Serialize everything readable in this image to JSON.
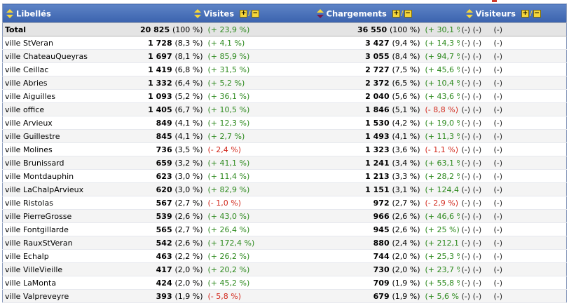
{
  "headers": {
    "libelles": "Libellés",
    "visites": "Visites",
    "chargements": "Chargements",
    "visiteurs": "Visiteurs",
    "plus": "+",
    "minus": "−",
    "slash": "/"
  },
  "total": {
    "label": "Total",
    "visites": "20 825",
    "visites_pct": "(100 %)",
    "visites_evol": "(+ 23,9 %)",
    "charg": "36 550",
    "charg_pct": "(100 %)",
    "charg_evol": "(+ 30,1 %)",
    "v1": "(-)",
    "v2": "(-)",
    "v3": "(-)"
  },
  "rows": [
    {
      "label": "ville StVeran",
      "visites": "1 728",
      "visites_pct": "(8,3 %)",
      "visites_evol": "(+ 4,1 %)",
      "visites_sign": "pos",
      "charg": "3 427",
      "charg_pct": "(9,4 %)",
      "charg_evol": "(+ 14,3 %)",
      "charg_sign": "pos",
      "v1": "(-)",
      "v2": "(-)",
      "v3": "(-)"
    },
    {
      "label": "ville ChateauQueyras",
      "visites": "1 697",
      "visites_pct": "(8,1 %)",
      "visites_evol": "(+ 85,9 %)",
      "visites_sign": "pos",
      "charg": "3 055",
      "charg_pct": "(8,4 %)",
      "charg_evol": "(+ 94,7 %)",
      "charg_sign": "pos",
      "v1": "(-)",
      "v2": "(-)",
      "v3": "(-)"
    },
    {
      "label": "ville Ceillac",
      "visites": "1 419",
      "visites_pct": "(6,8 %)",
      "visites_evol": "(+ 31,5 %)",
      "visites_sign": "pos",
      "charg": "2 727",
      "charg_pct": "(7,5 %)",
      "charg_evol": "(+ 45,6 %)",
      "charg_sign": "pos",
      "v1": "(-)",
      "v2": "(-)",
      "v3": "(-)"
    },
    {
      "label": "ville Abries",
      "visites": "1 332",
      "visites_pct": "(6,4 %)",
      "visites_evol": "(+ 5,2 %)",
      "visites_sign": "pos",
      "charg": "2 372",
      "charg_pct": "(6,5 %)",
      "charg_evol": "(+ 10,4 %)",
      "charg_sign": "pos",
      "v1": "(-)",
      "v2": "(-)",
      "v3": "(-)"
    },
    {
      "label": "ville Aiguilles",
      "visites": "1 093",
      "visites_pct": "(5,2 %)",
      "visites_evol": "(+ 36,1 %)",
      "visites_sign": "pos",
      "charg": "2 040",
      "charg_pct": "(5,6 %)",
      "charg_evol": "(+ 43,6 %)",
      "charg_sign": "pos",
      "v1": "(-)",
      "v2": "(-)",
      "v3": "(-)"
    },
    {
      "label": "ville office",
      "visites": "1 405",
      "visites_pct": "(6,7 %)",
      "visites_evol": "(+ 10,5 %)",
      "visites_sign": "pos",
      "charg": "1 846",
      "charg_pct": "(5,1 %)",
      "charg_evol": "(- 8,8 %)",
      "charg_sign": "neg",
      "v1": "(-)",
      "v2": "(-)",
      "v3": "(-)"
    },
    {
      "label": "ville Arvieux",
      "visites": "849",
      "visites_pct": "(4,1 %)",
      "visites_evol": "(+ 12,3 %)",
      "visites_sign": "pos",
      "charg": "1 530",
      "charg_pct": "(4,2 %)",
      "charg_evol": "(+ 19,0 %)",
      "charg_sign": "pos",
      "v1": "(-)",
      "v2": "(-)",
      "v3": "(-)"
    },
    {
      "label": "ville Guillestre",
      "visites": "845",
      "visites_pct": "(4,1 %)",
      "visites_evol": "(+ 2,7 %)",
      "visites_sign": "pos",
      "charg": "1 493",
      "charg_pct": "(4,1 %)",
      "charg_evol": "(+ 11,3 %)",
      "charg_sign": "pos",
      "v1": "(-)",
      "v2": "(-)",
      "v3": "(-)"
    },
    {
      "label": "ville Molines",
      "visites": "736",
      "visites_pct": "(3,5 %)",
      "visites_evol": "(- 2,4 %)",
      "visites_sign": "neg",
      "charg": "1 323",
      "charg_pct": "(3,6 %)",
      "charg_evol": "(- 1,1 %)",
      "charg_sign": "neg",
      "v1": "(-)",
      "v2": "(-)",
      "v3": "(-)"
    },
    {
      "label": "ville Brunissard",
      "visites": "659",
      "visites_pct": "(3,2 %)",
      "visites_evol": "(+ 41,1 %)",
      "visites_sign": "pos",
      "charg": "1 241",
      "charg_pct": "(3,4 %)",
      "charg_evol": "(+ 63,1 %)",
      "charg_sign": "pos",
      "v1": "(-)",
      "v2": "(-)",
      "v3": "(-)"
    },
    {
      "label": "ville Montdauphin",
      "visites": "623",
      "visites_pct": "(3,0 %)",
      "visites_evol": "(+ 11,4 %)",
      "visites_sign": "pos",
      "charg": "1 213",
      "charg_pct": "(3,3 %)",
      "charg_evol": "(+ 28,2 %)",
      "charg_sign": "pos",
      "v1": "(-)",
      "v2": "(-)",
      "v3": "(-)"
    },
    {
      "label": "ville LaChalpArvieux",
      "visites": "620",
      "visites_pct": "(3,0 %)",
      "visites_evol": "(+ 82,9 %)",
      "visites_sign": "pos",
      "charg": "1 151",
      "charg_pct": "(3,1 %)",
      "charg_evol": "(+ 124,4 %)",
      "charg_sign": "pos",
      "v1": "(-)",
      "v2": "(-)",
      "v3": "(-)"
    },
    {
      "label": "ville Ristolas",
      "visites": "567",
      "visites_pct": "(2,7 %)",
      "visites_evol": "(- 1,0 %)",
      "visites_sign": "neg",
      "charg": "972",
      "charg_pct": "(2,7 %)",
      "charg_evol": "(- 2,9 %)",
      "charg_sign": "neg",
      "v1": "(-)",
      "v2": "(-)",
      "v3": "(-)"
    },
    {
      "label": "ville PierreGrosse",
      "visites": "539",
      "visites_pct": "(2,6 %)",
      "visites_evol": "(+ 43,0 %)",
      "visites_sign": "pos",
      "charg": "966",
      "charg_pct": "(2,6 %)",
      "charg_evol": "(+ 46,6 %)",
      "charg_sign": "pos",
      "v1": "(-)",
      "v2": "(-)",
      "v3": "(-)"
    },
    {
      "label": "ville Fontgillarde",
      "visites": "565",
      "visites_pct": "(2,7 %)",
      "visites_evol": "(+ 26,4 %)",
      "visites_sign": "pos",
      "charg": "945",
      "charg_pct": "(2,6 %)",
      "charg_evol": "(+ 25 %)",
      "charg_sign": "pos",
      "v1": "(-)",
      "v2": "(-)",
      "v3": "(-)"
    },
    {
      "label": "ville RauxStVeran",
      "visites": "542",
      "visites_pct": "(2,6 %)",
      "visites_evol": "(+ 172,4 %)",
      "visites_sign": "pos",
      "charg": "880",
      "charg_pct": "(2,4 %)",
      "charg_evol": "(+ 212,1 %)",
      "charg_sign": "pos",
      "v1": "(-)",
      "v2": "(-)",
      "v3": "(-)"
    },
    {
      "label": "ville Echalp",
      "visites": "463",
      "visites_pct": "(2,2 %)",
      "visites_evol": "(+ 26,2 %)",
      "visites_sign": "pos",
      "charg": "744",
      "charg_pct": "(2,0 %)",
      "charg_evol": "(+ 25,3 %)",
      "charg_sign": "pos",
      "v1": "(-)",
      "v2": "(-)",
      "v3": "(-)"
    },
    {
      "label": "ville VilleVieille",
      "visites": "417",
      "visites_pct": "(2,0 %)",
      "visites_evol": "(+ 20,2 %)",
      "visites_sign": "pos",
      "charg": "730",
      "charg_pct": "(2,0 %)",
      "charg_evol": "(+ 23,7 %)",
      "charg_sign": "pos",
      "v1": "(-)",
      "v2": "(-)",
      "v3": "(-)"
    },
    {
      "label": "ville LaMonta",
      "visites": "424",
      "visites_pct": "(2,0 %)",
      "visites_evol": "(+ 45,2 %)",
      "visites_sign": "pos",
      "charg": "709",
      "charg_pct": "(1,9 %)",
      "charg_evol": "(+ 55,8 %)",
      "charg_sign": "pos",
      "v1": "(-)",
      "v2": "(-)",
      "v3": "(-)"
    },
    {
      "label": "ville Valpreveyre",
      "visites": "393",
      "visites_pct": "(1,9 %)",
      "visites_evol": "(- 5,8 %)",
      "visites_sign": "neg",
      "charg": "679",
      "charg_pct": "(1,9 %)",
      "charg_evol": "(+ 5,6 %)",
      "charg_sign": "pos",
      "v1": "(-)",
      "v2": "(-)",
      "v3": "(-)"
    }
  ],
  "colors": {
    "header_bg": "#3f68b0",
    "positive": "#2d8a1e",
    "negative": "#d22a1e",
    "toggle_yellow": "#f5d63a"
  }
}
